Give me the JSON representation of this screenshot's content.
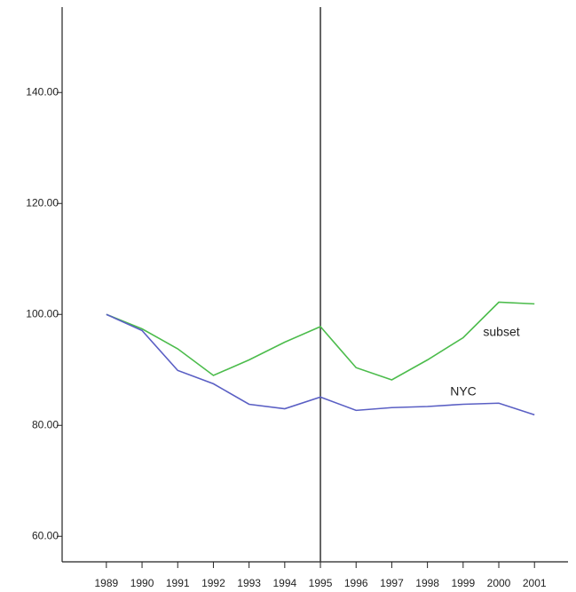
{
  "chart_data": {
    "type": "line",
    "x": [
      1989,
      1990,
      1991,
      1992,
      1993,
      1994,
      1995,
      1996,
      1997,
      1998,
      1999,
      2000,
      2001
    ],
    "xlim": [
      1987.76,
      2001.94
    ],
    "xticks": [
      1989,
      1990,
      1991,
      1992,
      1993,
      1994,
      1995,
      1996,
      1997,
      1998,
      1999,
      2000,
      2001
    ],
    "ylim": [
      55.4,
      155.4
    ],
    "yticks": [
      {
        "value": 60,
        "label": "60.00"
      },
      {
        "value": 80,
        "label": "80.00"
      },
      {
        "value": 100,
        "label": "100.00"
      },
      {
        "value": 120,
        "label": "120.00"
      },
      {
        "value": 140,
        "label": "140.00"
      }
    ],
    "vline": 1995,
    "series": [
      {
        "name": "subset",
        "color": "#4cbc4c",
        "values": [
          100,
          97.4,
          93.8,
          89.0,
          91.8,
          95.0,
          97.8,
          90.4,
          88.2,
          91.8,
          95.8,
          102.2,
          101.9
        ]
      },
      {
        "name": "NYC",
        "color": "#5a5fc4",
        "values": [
          100,
          97.1,
          89.9,
          87.5,
          83.8,
          83.0,
          85.1,
          82.7,
          83.2,
          83.4,
          83.8,
          84.0,
          81.9
        ]
      }
    ]
  }
}
